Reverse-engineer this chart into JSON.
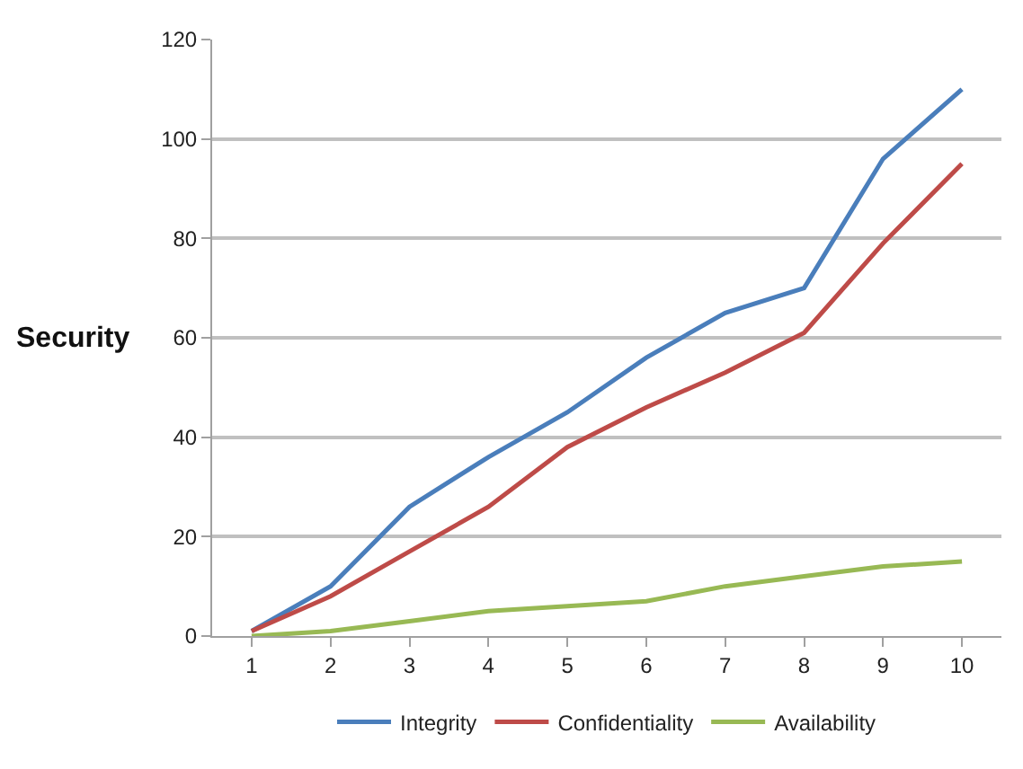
{
  "chart_data": {
    "type": "line",
    "ylabel": "Security",
    "categories": [
      "1",
      "2",
      "3",
      "4",
      "5",
      "6",
      "7",
      "8",
      "9",
      "10"
    ],
    "series": [
      {
        "name": "Integrity",
        "color": "#4a7ebb",
        "values": [
          1,
          10,
          26,
          36,
          45,
          56,
          65,
          70,
          96,
          110
        ]
      },
      {
        "name": "Confidentiality",
        "color": "#be4b48",
        "values": [
          1,
          8,
          17,
          26,
          38,
          46,
          53,
          61,
          79,
          95
        ]
      },
      {
        "name": "Availability",
        "color": "#98b954",
        "values": [
          0,
          1,
          3,
          5,
          6,
          7,
          10,
          12,
          14,
          15
        ]
      }
    ],
    "ylim": [
      0,
      120
    ],
    "yticks": [
      0,
      20,
      40,
      60,
      80,
      100,
      120
    ],
    "grid": "y",
    "legend": "bottom",
    "marker": "none",
    "line_style": "solid"
  }
}
